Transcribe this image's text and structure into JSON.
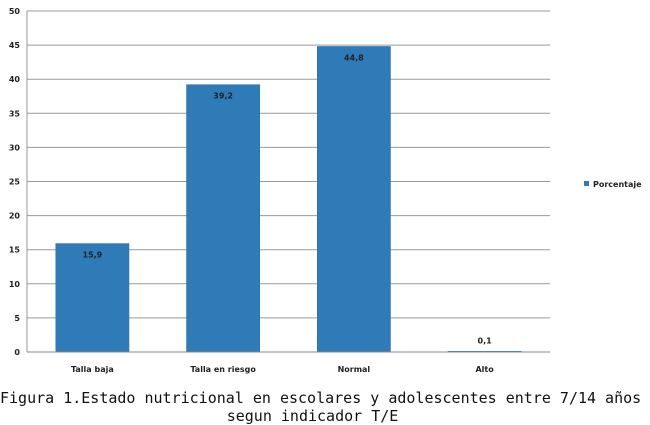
{
  "chart_data": {
    "type": "bar",
    "categories": [
      "Talla baja",
      "Talla en riesgo",
      "Normal",
      "Alto"
    ],
    "series": [
      {
        "name": "Porcentaje",
        "values": [
          15.9,
          39.2,
          44.8,
          0.1
        ],
        "color": "#2F7BB8"
      }
    ],
    "data_labels": [
      "15,9",
      "39,2",
      "44,8",
      "0,1"
    ],
    "yticks": [
      0,
      5,
      10,
      15,
      20,
      25,
      30,
      35,
      40,
      45,
      50
    ],
    "ylim": [
      0,
      50
    ],
    "grid": true,
    "legend_position": "right",
    "gridline_color": "#9a9a9a"
  },
  "caption": {
    "line1": "Figura 1.Estado nutricional en escolares y adolescentes entre 7/14 años",
    "line2": "segun indicador T/E"
  }
}
